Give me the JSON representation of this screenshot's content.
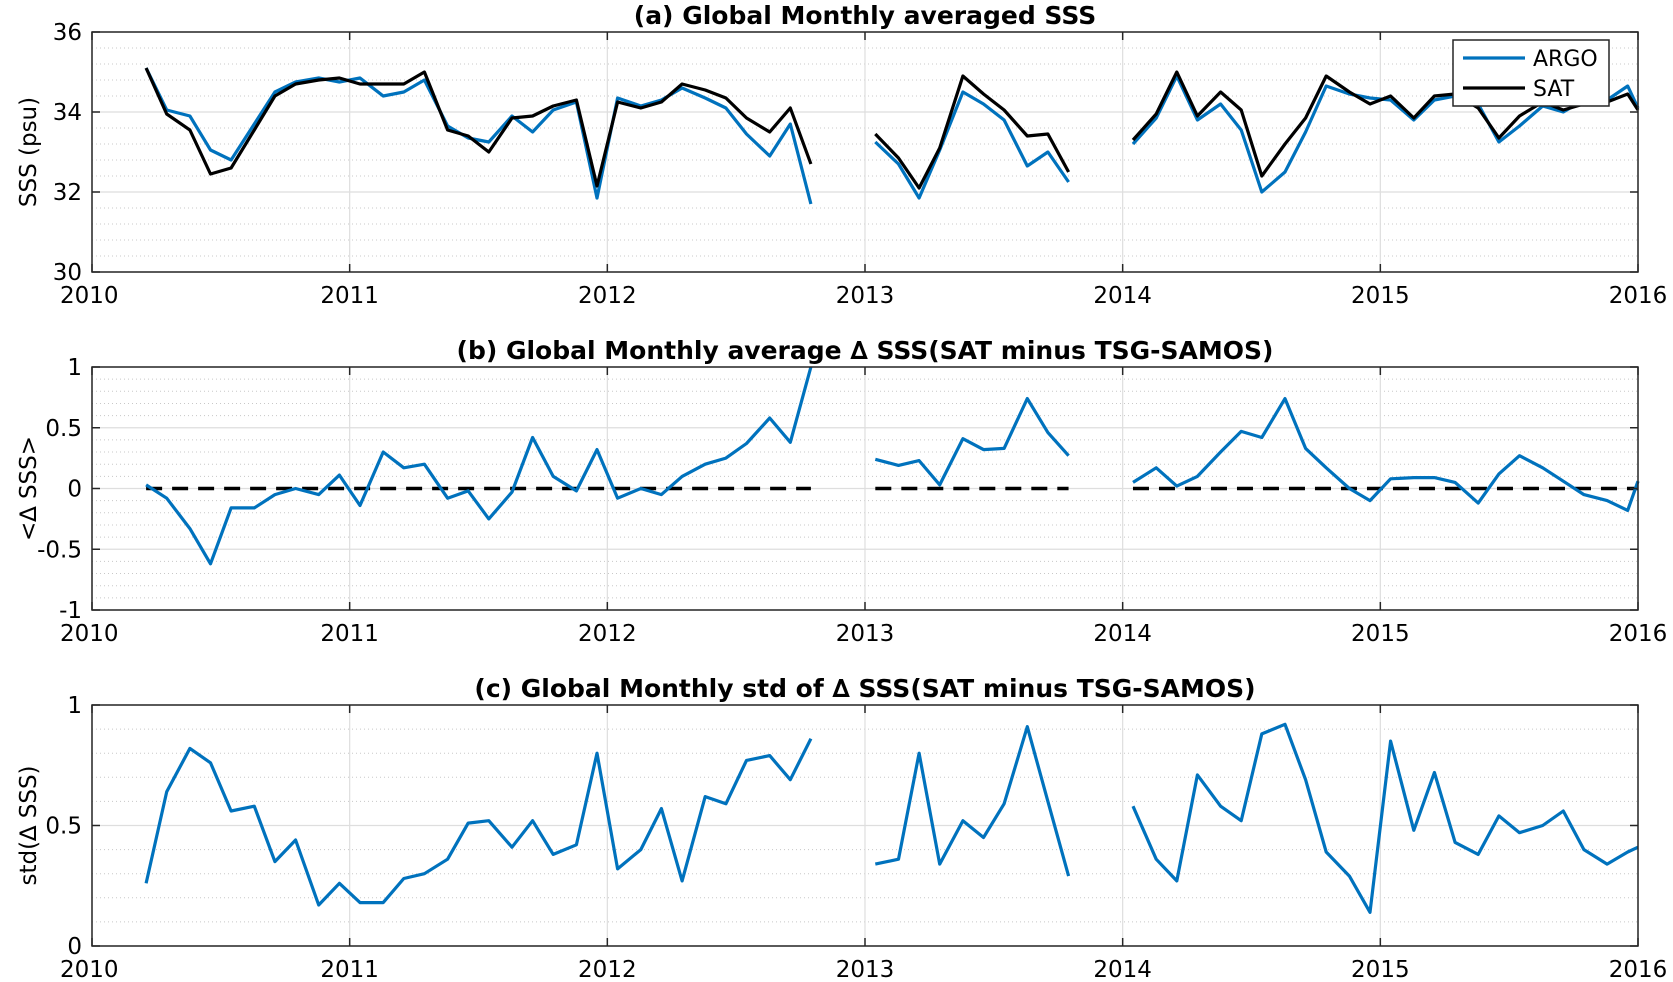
{
  "chart_data": [
    {
      "type": "line",
      "title": "(a) Global Monthly averaged SSS",
      "ylabel": "SSS (psu)",
      "xlabel": "",
      "xlim": [
        2010,
        2016
      ],
      "ylim": [
        30,
        36
      ],
      "xticks": [
        2010,
        2011,
        2012,
        2013,
        2014,
        2015,
        2016
      ],
      "yticks": [
        30,
        32,
        34,
        36
      ],
      "grid": true,
      "legend": {
        "position": "top-right",
        "entries": [
          "ARGO",
          "SAT"
        ]
      },
      "series": [
        {
          "name": "ARGO",
          "color": "#0072BD",
          "segments": [
            {
              "x": [
                2010.21,
                2010.29,
                2010.38,
                2010.46,
                2010.54,
                2010.63,
                2010.71,
                2010.79,
                2010.88,
                2010.96,
                2011.04,
                2011.13,
                2011.21,
                2011.29,
                2011.38,
                2011.46,
                2011.54,
                2011.63,
                2011.71,
                2011.79,
                2011.88,
                2011.96,
                2012.04,
                2012.13,
                2012.21,
                2012.29,
                2012.38,
                2012.46,
                2012.54,
                2012.63,
                2012.71,
                2012.79
              ],
              "y": [
                35.1,
                34.05,
                33.9,
                33.05,
                32.8,
                33.7,
                34.5,
                34.75,
                34.85,
                34.75,
                34.85,
                34.4,
                34.5,
                34.8,
                33.65,
                33.35,
                33.25,
                33.9,
                33.5,
                34.05,
                34.25,
                31.85,
                34.35,
                34.15,
                34.3,
                34.6,
                34.35,
                34.1,
                33.45,
                32.9,
                33.7,
                31.7
              ]
            },
            {
              "x": [
                2013.04,
                2013.13,
                2013.21,
                2013.29,
                2013.38,
                2013.46,
                2013.54,
                2013.63,
                2013.71,
                2013.79
              ],
              "y": [
                33.25,
                32.7,
                31.85,
                33.05,
                34.5,
                34.2,
                33.8,
                32.65,
                33.0,
                32.25
              ]
            },
            {
              "x": [
                2014.04,
                2014.13,
                2014.21,
                2014.29,
                2014.38,
                2014.46,
                2014.54,
                2014.63,
                2014.71,
                2014.79,
                2014.88,
                2014.96,
                2015.04,
                2015.13,
                2015.21,
                2015.29,
                2015.38,
                2015.46,
                2015.54,
                2015.63,
                2015.71,
                2015.79,
                2015.88,
                2015.96,
                2016.0
              ],
              "y": [
                33.2,
                33.85,
                34.9,
                33.8,
                34.2,
                33.55,
                32.0,
                32.5,
                33.5,
                34.65,
                34.45,
                34.35,
                34.3,
                33.8,
                34.3,
                34.4,
                34.2,
                33.25,
                33.65,
                34.15,
                34.0,
                34.3,
                34.3,
                34.65,
                34.1
              ]
            }
          ]
        },
        {
          "name": "SAT",
          "color": "#000000",
          "segments": [
            {
              "x": [
                2010.21,
                2010.29,
                2010.38,
                2010.46,
                2010.54,
                2010.63,
                2010.71,
                2010.79,
                2010.88,
                2010.96,
                2011.04,
                2011.13,
                2011.21,
                2011.29,
                2011.38,
                2011.46,
                2011.54,
                2011.63,
                2011.71,
                2011.79,
                2011.88,
                2011.96,
                2012.04,
                2012.13,
                2012.21,
                2012.29,
                2012.38,
                2012.46,
                2012.54,
                2012.63,
                2012.71,
                2012.79
              ],
              "y": [
                35.1,
                33.95,
                33.55,
                32.45,
                32.6,
                33.55,
                34.4,
                34.7,
                34.8,
                34.85,
                34.7,
                34.7,
                34.7,
                35.0,
                33.55,
                33.4,
                33.0,
                33.85,
                33.9,
                34.15,
                34.3,
                32.15,
                34.25,
                34.1,
                34.25,
                34.7,
                34.55,
                34.35,
                33.85,
                33.5,
                34.1,
                32.7
              ]
            },
            {
              "x": [
                2013.04,
                2013.13,
                2013.21,
                2013.29,
                2013.38,
                2013.46,
                2013.54,
                2013.63,
                2013.71,
                2013.79
              ],
              "y": [
                33.45,
                32.85,
                32.1,
                33.1,
                34.9,
                34.45,
                34.05,
                33.4,
                33.45,
                32.5
              ]
            },
            {
              "x": [
                2014.04,
                2014.13,
                2014.21,
                2014.29,
                2014.38,
                2014.46,
                2014.54,
                2014.63,
                2014.71,
                2014.79,
                2014.88,
                2014.96,
                2015.04,
                2015.13,
                2015.21,
                2015.29,
                2015.38,
                2015.46,
                2015.54,
                2015.63,
                2015.71,
                2015.79,
                2015.88,
                2015.96,
                2016.0
              ],
              "y": [
                33.3,
                33.95,
                35.0,
                33.9,
                34.5,
                34.05,
                32.4,
                33.2,
                33.85,
                34.9,
                34.5,
                34.2,
                34.4,
                33.85,
                34.4,
                34.45,
                34.1,
                33.35,
                33.9,
                34.25,
                34.05,
                34.2,
                34.25,
                34.45,
                34.05
              ]
            }
          ]
        }
      ]
    },
    {
      "type": "line",
      "title": "(b) Global Monthly average ∆ SSS(SAT minus TSG-SAMOS)",
      "ylabel": "<∆ SSS>",
      "xlabel": "",
      "xlim": [
        2010,
        2016
      ],
      "ylim": [
        -1,
        1
      ],
      "xticks": [
        2010,
        2011,
        2012,
        2013,
        2014,
        2015,
        2016
      ],
      "yticks": [
        -1,
        -0.5,
        0,
        0.5,
        1
      ],
      "grid": true,
      "reference_line": {
        "y": 0,
        "style": "dashed",
        "color": "#000000",
        "segments": [
          [
            2010.21,
            2012.79
          ],
          [
            2013.04,
            2013.79
          ],
          [
            2014.04,
            2016.0
          ]
        ]
      },
      "series": [
        {
          "color": "#0072BD",
          "segments": [
            {
              "x": [
                2010.21,
                2010.29,
                2010.38,
                2010.46,
                2010.54,
                2010.63,
                2010.71,
                2010.79,
                2010.88,
                2010.96,
                2011.04,
                2011.13,
                2011.21,
                2011.29,
                2011.38,
                2011.46,
                2011.54,
                2011.63,
                2011.71,
                2011.79,
                2011.88,
                2011.96,
                2012.04,
                2012.13,
                2012.21,
                2012.29,
                2012.38,
                2012.46,
                2012.54,
                2012.63,
                2012.71,
                2012.79
              ],
              "y": [
                0.03,
                -0.08,
                -0.33,
                -0.62,
                -0.16,
                -0.16,
                -0.05,
                0.0,
                -0.05,
                0.11,
                -0.14,
                0.3,
                0.17,
                0.2,
                -0.08,
                -0.02,
                -0.25,
                -0.03,
                0.42,
                0.1,
                -0.02,
                0.32,
                -0.08,
                0.0,
                -0.05,
                0.1,
                0.2,
                0.25,
                0.37,
                0.58,
                0.38,
                1.0
              ]
            },
            {
              "x": [
                2013.04,
                2013.13,
                2013.21,
                2013.29,
                2013.38,
                2013.46,
                2013.54,
                2013.63,
                2013.71,
                2013.79
              ],
              "y": [
                0.24,
                0.19,
                0.23,
                0.03,
                0.41,
                0.32,
                0.33,
                0.74,
                0.46,
                0.27
              ]
            },
            {
              "x": [
                2014.04,
                2014.13,
                2014.21,
                2014.29,
                2014.38,
                2014.46,
                2014.54,
                2014.63,
                2014.71,
                2014.79,
                2014.88,
                2014.96,
                2015.04,
                2015.13,
                2015.21,
                2015.29,
                2015.38,
                2015.46,
                2015.54,
                2015.63,
                2015.71,
                2015.79,
                2015.88,
                2015.96,
                2016.0
              ],
              "y": [
                0.05,
                0.17,
                0.02,
                0.1,
                0.3,
                0.47,
                0.42,
                0.74,
                0.33,
                0.17,
                0.0,
                -0.1,
                0.08,
                0.09,
                0.09,
                0.05,
                -0.12,
                0.12,
                0.27,
                0.17,
                0.06,
                -0.05,
                -0.1,
                -0.18,
                0.06
              ]
            }
          ]
        }
      ]
    },
    {
      "type": "line",
      "title": "(c) Global Monthly std of ∆ SSS(SAT minus TSG-SAMOS)",
      "ylabel": "std(∆ SSS)",
      "xlabel": "",
      "xlim": [
        2010,
        2016
      ],
      "ylim": [
        0,
        1
      ],
      "xticks": [
        2010,
        2011,
        2012,
        2013,
        2014,
        2015,
        2016
      ],
      "yticks": [
        0,
        0.5,
        1
      ],
      "grid": true,
      "series": [
        {
          "color": "#0072BD",
          "segments": [
            {
              "x": [
                2010.21,
                2010.29,
                2010.38,
                2010.46,
                2010.54,
                2010.63,
                2010.71,
                2010.79,
                2010.88,
                2010.96,
                2011.04,
                2011.13,
                2011.21,
                2011.29,
                2011.38,
                2011.46,
                2011.54,
                2011.63,
                2011.71,
                2011.79,
                2011.88,
                2011.96,
                2012.04,
                2012.13,
                2012.21,
                2012.29,
                2012.38,
                2012.46,
                2012.54,
                2012.63,
                2012.71,
                2012.79
              ],
              "y": [
                0.26,
                0.64,
                0.82,
                0.76,
                0.56,
                0.58,
                0.35,
                0.44,
                0.17,
                0.26,
                0.18,
                0.18,
                0.28,
                0.3,
                0.36,
                0.51,
                0.52,
                0.41,
                0.52,
                0.38,
                0.42,
                0.8,
                0.32,
                0.4,
                0.57,
                0.27,
                0.62,
                0.59,
                0.77,
                0.79,
                0.69,
                0.86
              ]
            },
            {
              "x": [
                2013.04,
                2013.13,
                2013.21,
                2013.29,
                2013.38,
                2013.46,
                2013.54,
                2013.63,
                2013.71,
                2013.79
              ],
              "y": [
                0.34,
                0.36,
                0.8,
                0.34,
                0.52,
                0.45,
                0.59,
                0.91,
                0.6,
                0.29
              ]
            },
            {
              "x": [
                2014.04,
                2014.13,
                2014.21,
                2014.29,
                2014.38,
                2014.46,
                2014.54,
                2014.63,
                2014.71,
                2014.79,
                2014.88,
                2014.96,
                2015.04,
                2015.13,
                2015.21,
                2015.29,
                2015.38,
                2015.46,
                2015.54,
                2015.63,
                2015.71,
                2015.79,
                2015.88,
                2015.96,
                2016.0
              ],
              "y": [
                0.58,
                0.36,
                0.27,
                0.71,
                0.58,
                0.52,
                0.88,
                0.92,
                0.69,
                0.39,
                0.29,
                0.14,
                0.85,
                0.48,
                0.72,
                0.43,
                0.38,
                0.54,
                0.47,
                0.5,
                0.56,
                0.4,
                0.34,
                0.39,
                0.41
              ]
            }
          ]
        }
      ]
    }
  ]
}
